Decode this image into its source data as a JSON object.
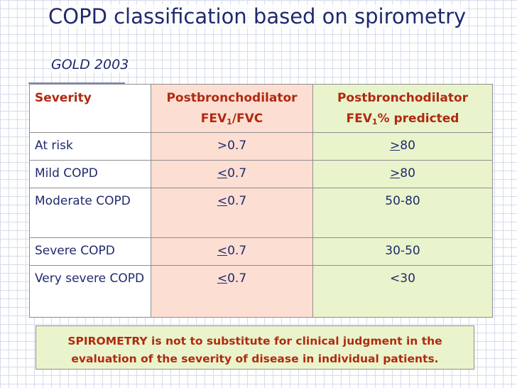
{
  "title": "COPD classification based on spirometry",
  "subtitle": "GOLD 2003",
  "table": {
    "headers": {
      "severity": "Severity",
      "fvc_line1": "Postbronchodilator",
      "fvc_prefix": "FEV",
      "fvc_sub": "1",
      "fvc_suffix": "/FVC",
      "pred_line1": "Postbronchodilator",
      "pred_prefix": "FEV",
      "pred_sub": "1",
      "pred_suffix": "% predicted"
    },
    "rows": [
      {
        "severity": "At risk",
        "fvc_sym": "",
        "fvc_val": ">0.7",
        "pred_sym": ">",
        "pred_val": "80"
      },
      {
        "severity": "Mild COPD",
        "fvc_sym": "<",
        "fvc_val": "0.7",
        "pred_sym": ">",
        "pred_val": "80"
      },
      {
        "severity": "Moderate COPD",
        "fvc_sym": "<",
        "fvc_val": "0.7",
        "pred_sym": "",
        "pred_val": "50-80"
      },
      {
        "severity": "Severe COPD",
        "fvc_sym": "<",
        "fvc_val": "0.7",
        "pred_sym": "",
        "pred_val": "30-50"
      },
      {
        "severity": "Very severe COPD",
        "fvc_sym": "<",
        "fvc_val": "0.7",
        "pred_sym": "",
        "pred_val": "<30"
      }
    ]
  },
  "note": {
    "line1": "SPIROMETRY is not to substitute for clinical judgment in the",
    "line2": "evaluation of the severity of disease in individual patients."
  }
}
